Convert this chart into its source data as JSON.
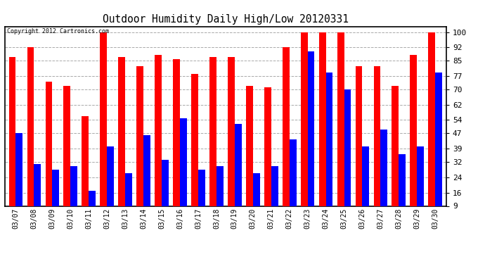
{
  "title": "Outdoor Humidity Daily High/Low 20120331",
  "copyright": "Copyright 2012 Cartronics.com",
  "dates": [
    "03/07",
    "03/08",
    "03/09",
    "03/10",
    "03/11",
    "03/12",
    "03/13",
    "03/14",
    "03/15",
    "03/16",
    "03/17",
    "03/18",
    "03/19",
    "03/20",
    "03/21",
    "03/22",
    "03/23",
    "03/24",
    "03/25",
    "03/26",
    "03/27",
    "03/28",
    "03/29",
    "03/30"
  ],
  "highs": [
    87,
    92,
    74,
    72,
    56,
    100,
    87,
    82,
    88,
    86,
    78,
    87,
    87,
    72,
    71,
    92,
    100,
    100,
    100,
    82,
    82,
    72,
    88,
    100
  ],
  "lows": [
    47,
    31,
    28,
    30,
    17,
    40,
    26,
    46,
    33,
    55,
    28,
    30,
    52,
    26,
    30,
    44,
    90,
    79,
    70,
    40,
    49,
    36,
    40,
    79
  ],
  "high_color": "#FF0000",
  "low_color": "#0000FF",
  "bg_color": "#FFFFFF",
  "plot_bg_color": "#FFFFFF",
  "yticks": [
    9,
    16,
    24,
    32,
    39,
    47,
    54,
    62,
    70,
    77,
    85,
    92,
    100
  ],
  "ymin": 9,
  "ymax": 100,
  "grid_color": "#AAAAAA",
  "bar_width": 0.38
}
